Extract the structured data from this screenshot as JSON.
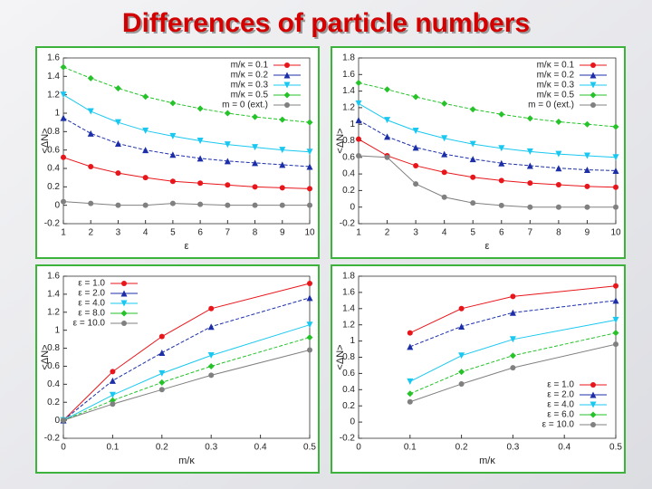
{
  "title": "Differences of particle numbers",
  "chart_data": [
    {
      "type": "line",
      "x_label": "ε",
      "y_label": "<ΔN>",
      "legend": "upper right",
      "grid": false,
      "x": [
        1,
        2,
        3,
        4,
        5,
        6,
        7,
        8,
        9,
        10
      ],
      "xlim": [
        1,
        10
      ],
      "xticks": [
        1,
        2,
        3,
        4,
        5,
        6,
        7,
        8,
        9,
        10
      ],
      "ylim": [
        -0.2,
        1.6
      ],
      "yticks": [
        -0.2,
        0,
        0.2,
        0.4,
        0.6,
        0.8,
        1,
        1.2,
        1.4,
        1.6
      ],
      "series": [
        {
          "name": "m/κ = 0.1",
          "color": "#e8151a",
          "values": [
            0.52,
            0.42,
            0.35,
            0.3,
            0.26,
            0.24,
            0.22,
            0.2,
            0.19,
            0.18
          ]
        },
        {
          "name": "m/κ = 0.2",
          "color": "#1c2fa8",
          "values": [
            0.95,
            0.78,
            0.67,
            0.6,
            0.55,
            0.51,
            0.48,
            0.46,
            0.44,
            0.42
          ]
        },
        {
          "name": "m/κ = 0.3",
          "color": "#19c8f0",
          "values": [
            1.2,
            1.02,
            0.9,
            0.81,
            0.75,
            0.7,
            0.66,
            0.63,
            0.6,
            0.58
          ]
        },
        {
          "name": "m/κ = 0.5",
          "color": "#25c22a",
          "values": [
            1.5,
            1.38,
            1.27,
            1.18,
            1.11,
            1.05,
            1.0,
            0.96,
            0.93,
            0.9
          ]
        },
        {
          "name": "m = 0 (ext.)",
          "color": "#808080",
          "values": [
            0.04,
            0.02,
            0.0,
            0.0,
            0.02,
            0.01,
            0.0,
            0.0,
            0.0,
            0.0
          ]
        }
      ]
    },
    {
      "type": "line",
      "x_label": "ε",
      "y_label": "<ΔN>",
      "legend": "upper right",
      "grid": false,
      "x": [
        1,
        2,
        3,
        4,
        5,
        6,
        7,
        8,
        9,
        10
      ],
      "xlim": [
        1,
        10
      ],
      "xticks": [
        1,
        2,
        3,
        4,
        5,
        6,
        7,
        8,
        9,
        10
      ],
      "ylim": [
        -0.2,
        1.8
      ],
      "yticks": [
        -0.2,
        0,
        0.2,
        0.4,
        0.6,
        0.8,
        1,
        1.2,
        1.4,
        1.6,
        1.8
      ],
      "series": [
        {
          "name": "m/κ = 0.1",
          "color": "#e8151a",
          "values": [
            0.82,
            0.62,
            0.5,
            0.42,
            0.36,
            0.32,
            0.29,
            0.27,
            0.25,
            0.24
          ]
        },
        {
          "name": "m/κ = 0.2",
          "color": "#1c2fa8",
          "values": [
            1.05,
            0.85,
            0.72,
            0.64,
            0.58,
            0.53,
            0.5,
            0.47,
            0.45,
            0.44
          ]
        },
        {
          "name": "m/κ = 0.3",
          "color": "#19c8f0",
          "values": [
            1.25,
            1.05,
            0.92,
            0.83,
            0.76,
            0.71,
            0.67,
            0.64,
            0.62,
            0.6
          ]
        },
        {
          "name": "m/κ = 0.5",
          "color": "#25c22a",
          "values": [
            1.5,
            1.42,
            1.33,
            1.25,
            1.18,
            1.12,
            1.07,
            1.03,
            1.0,
            0.97
          ]
        },
        {
          "name": "m = 0 (ext.)",
          "color": "#808080",
          "values": [
            0.62,
            0.6,
            0.28,
            0.12,
            0.05,
            0.02,
            0.0,
            0.0,
            0.0,
            0.0
          ]
        }
      ]
    },
    {
      "type": "line",
      "x_label": "m/κ",
      "y_label": "<ΔN>",
      "legend": "upper left",
      "grid": false,
      "x": [
        0,
        0.1,
        0.2,
        0.3,
        0.5
      ],
      "xlim": [
        0,
        0.5
      ],
      "xticks": [
        0,
        0.1,
        0.2,
        0.3,
        0.4,
        0.5
      ],
      "ylim": [
        -0.2,
        1.6
      ],
      "yticks": [
        -0.2,
        0,
        0.2,
        0.4,
        0.6,
        0.8,
        1,
        1.2,
        1.4,
        1.6
      ],
      "series": [
        {
          "name": "ε = 1.0",
          "color": "#e8151a",
          "values": [
            0,
            0.54,
            0.93,
            1.24,
            1.52
          ]
        },
        {
          "name": "ε = 2.0",
          "color": "#1c2fa8",
          "values": [
            0,
            0.44,
            0.75,
            1.04,
            1.36
          ]
        },
        {
          "name": "ε = 4.0",
          "color": "#19c8f0",
          "values": [
            0,
            0.28,
            0.52,
            0.72,
            1.06
          ]
        },
        {
          "name": "ε = 8.0",
          "color": "#25c22a",
          "values": [
            0,
            0.22,
            0.42,
            0.6,
            0.92
          ]
        },
        {
          "name": "ε = 10.0",
          "color": "#808080",
          "values": [
            0,
            0.18,
            0.34,
            0.5,
            0.78
          ]
        }
      ]
    },
    {
      "type": "line",
      "x_label": "m/κ",
      "y_label": "<ΔN>",
      "legend": "lower right",
      "grid": false,
      "x": [
        0.1,
        0.2,
        0.3,
        0.5
      ],
      "xlim": [
        0,
        0.5
      ],
      "xticks": [
        0,
        0.1,
        0.2,
        0.3,
        0.4,
        0.5
      ],
      "ylim": [
        -0.2,
        1.8
      ],
      "yticks": [
        -0.2,
        0,
        0.2,
        0.4,
        0.6,
        0.8,
        1,
        1.2,
        1.4,
        1.6,
        1.8
      ],
      "series": [
        {
          "name": "ε = 1.0",
          "color": "#e8151a",
          "values": [
            1.1,
            1.4,
            1.55,
            1.68
          ]
        },
        {
          "name": "ε = 2.0",
          "color": "#1c2fa8",
          "values": [
            0.93,
            1.18,
            1.35,
            1.5
          ]
        },
        {
          "name": "ε = 4.0",
          "color": "#19c8f0",
          "values": [
            0.5,
            0.82,
            1.02,
            1.26
          ]
        },
        {
          "name": "ε = 6.0",
          "color": "#25c22a",
          "values": [
            0.35,
            0.62,
            0.82,
            1.1
          ]
        },
        {
          "name": "ε = 10.0",
          "color": "#808080",
          "values": [
            0.25,
            0.47,
            0.67,
            0.96
          ]
        }
      ]
    }
  ]
}
